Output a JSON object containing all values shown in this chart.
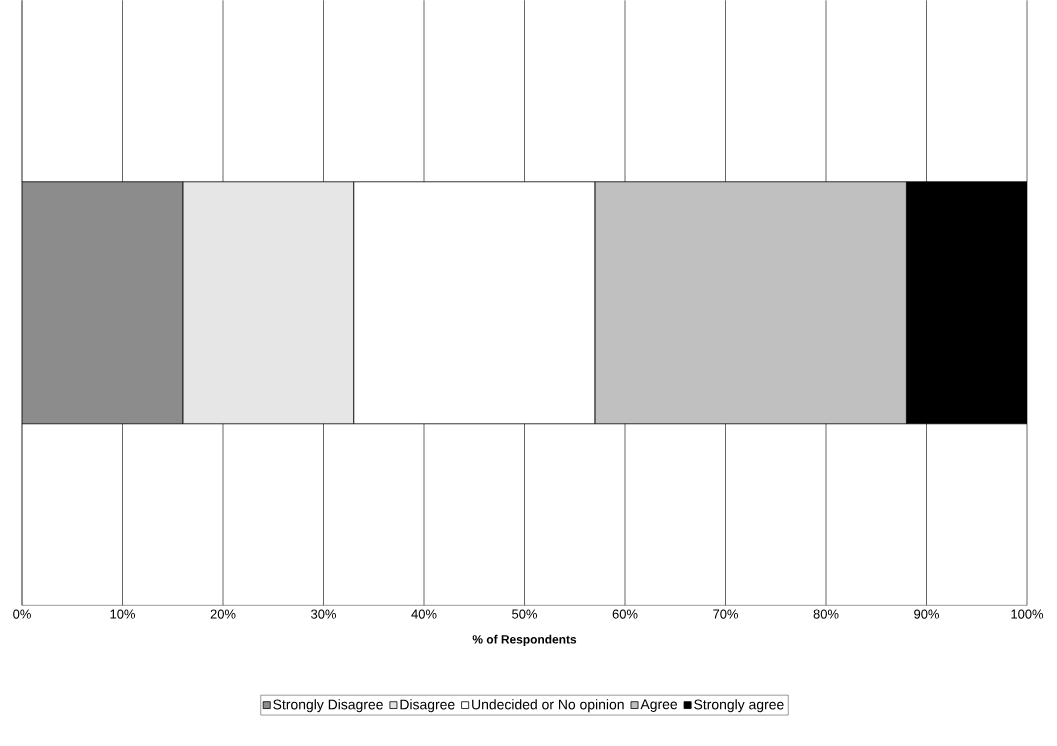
{
  "chart_data": {
    "type": "bar",
    "orientation": "horizontal",
    "stacked": true,
    "xlabel": "% of Respondents",
    "categories": [
      null
    ],
    "series": [
      {
        "name": "Strongly Disagree",
        "color": "#8c8c8c",
        "values": [
          16
        ]
      },
      {
        "name": "Disagree",
        "color": "#e6e6e6",
        "values": [
          17
        ]
      },
      {
        "name": "Undecided or No opinion",
        "color": "#ffffff",
        "values": [
          24
        ]
      },
      {
        "name": "Agree",
        "color": "#c0c0c0",
        "values": [
          31
        ]
      },
      {
        "name": "Strongly agree",
        "color": "#000000",
        "values": [
          12
        ]
      }
    ],
    "xlim": [
      0,
      100
    ],
    "xticks": [
      {
        "value": 0,
        "label": "0%"
      },
      {
        "value": 10,
        "label": "10%"
      },
      {
        "value": 20,
        "label": "20%"
      },
      {
        "value": 30,
        "label": "30%"
      },
      {
        "value": 40,
        "label": "40%"
      },
      {
        "value": 50,
        "label": "50%"
      },
      {
        "value": 60,
        "label": "60%"
      },
      {
        "value": 70,
        "label": "70%"
      },
      {
        "value": 80,
        "label": "80%"
      },
      {
        "value": 90,
        "label": "90%"
      },
      {
        "value": 100,
        "label": "100%"
      }
    ],
    "grid": "x",
    "legend": "bottom"
  }
}
